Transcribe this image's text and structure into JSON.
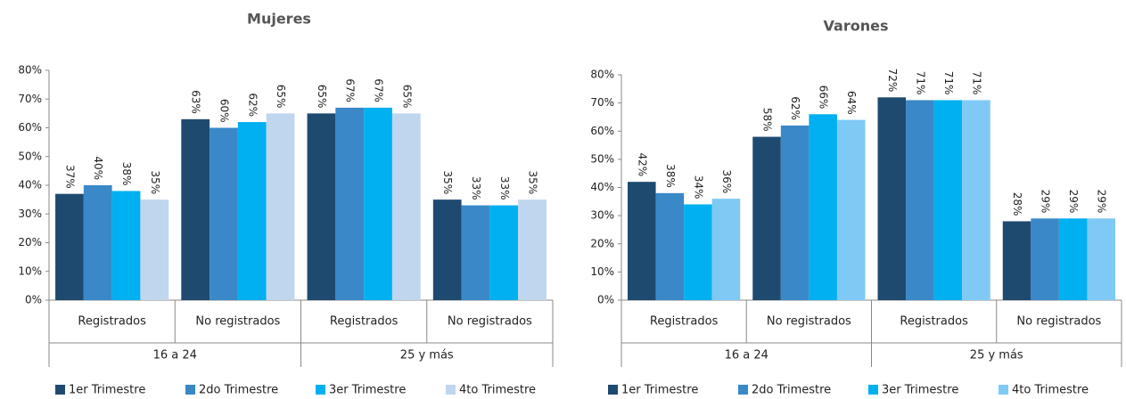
{
  "chart_data": [
    {
      "type": "bar",
      "title": "Mujeres",
      "categories": [
        "Registrados",
        "No registrados",
        "Registrados",
        "No registrados"
      ],
      "groups": [
        "16 a 24",
        "25 y más"
      ],
      "ylim": [
        0,
        80
      ],
      "yticks": [
        {
          "value": 0,
          "label": "0%"
        },
        {
          "value": 10,
          "label": "10%"
        },
        {
          "value": 20,
          "label": "20%"
        },
        {
          "value": 30,
          "label": "30%"
        },
        {
          "value": 40,
          "label": "40%"
        },
        {
          "value": 50,
          "label": "50%"
        },
        {
          "value": 60,
          "label": "60%"
        },
        {
          "value": 70,
          "label": "70%"
        },
        {
          "value": 80,
          "label": "80%"
        }
      ],
      "series": [
        {
          "name": "1er Trimestre",
          "color": "#1f4a70",
          "values": [
            37,
            63,
            65,
            35
          ],
          "value_labels": [
            "37%",
            "63%",
            "65%",
            "35%"
          ]
        },
        {
          "name": "2do Trimestre",
          "color": "#3a88c8",
          "values": [
            40,
            60,
            67,
            33
          ],
          "value_labels": [
            "40%",
            "60%",
            "67%",
            "33%"
          ]
        },
        {
          "name": "3er Trimestre",
          "color": "#00b0f0",
          "values": [
            38,
            62,
            67,
            33
          ],
          "value_labels": [
            "38%",
            "62%",
            "67%",
            "33%"
          ]
        },
        {
          "name": "4to Trimestre",
          "color": "#c0d6ee",
          "values": [
            35,
            65,
            65,
            35
          ],
          "value_labels": [
            "35%",
            "65%",
            "65%",
            "35%"
          ]
        }
      ]
    },
    {
      "type": "bar",
      "title": "Varones",
      "categories": [
        "Registrados",
        "No registrados",
        "Registrados",
        "No registrados"
      ],
      "groups": [
        "16 a 24",
        "25 y más"
      ],
      "ylim": [
        0,
        80
      ],
      "yticks": [
        {
          "value": 0,
          "label": "0%"
        },
        {
          "value": 10,
          "label": "10%"
        },
        {
          "value": 20,
          "label": "20%"
        },
        {
          "value": 30,
          "label": "30%"
        },
        {
          "value": 40,
          "label": "40%"
        },
        {
          "value": 50,
          "label": "50%"
        },
        {
          "value": 60,
          "label": "60%"
        },
        {
          "value": 70,
          "label": "70%"
        },
        {
          "value": 80,
          "label": "80%"
        }
      ],
      "series": [
        {
          "name": "1er Trimestre",
          "color": "#1f4a70",
          "values": [
            42,
            58,
            72,
            28
          ],
          "value_labels": [
            "42%",
            "58%",
            "72%",
            "28%"
          ]
        },
        {
          "name": "2do Trimestre",
          "color": "#3a88c8",
          "values": [
            38,
            62,
            71,
            29
          ],
          "value_labels": [
            "38%",
            "62%",
            "71%",
            "29%"
          ]
        },
        {
          "name": "3er Trimestre",
          "color": "#00b0f0",
          "values": [
            34,
            66,
            71,
            29
          ],
          "value_labels": [
            "34%",
            "66%",
            "71%",
            "29%"
          ]
        },
        {
          "name": "4to Trimestre",
          "color": "#7fc9f5",
          "values": [
            36,
            64,
            71,
            29
          ],
          "value_labels": [
            "36%",
            "64%",
            "71%",
            "29%"
          ]
        }
      ]
    }
  ]
}
